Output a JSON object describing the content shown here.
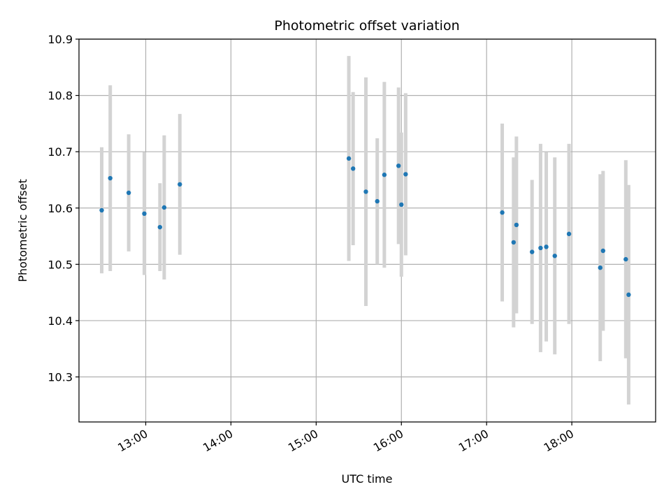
{
  "chart_data": {
    "type": "scatter",
    "title": "Photometric offset variation",
    "xlabel": "UTC time",
    "ylabel": "Photometric offset",
    "x_ticks": [
      "13:00",
      "14:00",
      "15:00",
      "16:00",
      "17:00",
      "18:00"
    ],
    "y_ticks": [
      "10.3",
      "10.4",
      "10.5",
      "10.6",
      "10.7",
      "10.8",
      "10.9"
    ],
    "xlim": [
      "12:13",
      "18:59"
    ],
    "ylim": [
      10.22,
      10.9
    ],
    "grid": true,
    "point_color": "#1f77b4",
    "errorbar_color": "#d3d3d3",
    "series": [
      {
        "points": [
          {
            "t": "12:29",
            "y": 10.596,
            "err": 0.112
          },
          {
            "t": "12:35",
            "y": 10.653,
            "err": 0.165
          },
          {
            "t": "12:48",
            "y": 10.627,
            "err": 0.104
          },
          {
            "t": "12:59",
            "y": 10.59,
            "err": 0.109
          },
          {
            "t": "13:10",
            "y": 10.566,
            "err": 0.078
          },
          {
            "t": "13:13",
            "y": 10.601,
            "err": 0.128
          },
          {
            "t": "13:24",
            "y": 10.642,
            "err": 0.125
          },
          {
            "t": "15:23",
            "y": 10.688,
            "err": 0.182
          },
          {
            "t": "15:26",
            "y": 10.67,
            "err": 0.136
          },
          {
            "t": "15:35",
            "y": 10.629,
            "err": 0.203
          },
          {
            "t": "15:43",
            "y": 10.612,
            "err": 0.112
          },
          {
            "t": "15:48",
            "y": 10.659,
            "err": 0.165
          },
          {
            "t": "15:58",
            "y": 10.675,
            "err": 0.139
          },
          {
            "t": "16:00",
            "y": 10.606,
            "err": 0.128
          },
          {
            "t": "16:03",
            "y": 10.66,
            "err": 0.144
          },
          {
            "t": "17:11",
            "y": 10.592,
            "err": 0.158
          },
          {
            "t": "17:19",
            "y": 10.539,
            "err": 0.151
          },
          {
            "t": "17:21",
            "y": 10.57,
            "err": 0.157
          },
          {
            "t": "17:32",
            "y": 10.522,
            "err": 0.128
          },
          {
            "t": "17:38",
            "y": 10.529,
            "err": 0.185
          },
          {
            "t": "17:42",
            "y": 10.531,
            "err": 0.168
          },
          {
            "t": "17:48",
            "y": 10.515,
            "err": 0.175
          },
          {
            "t": "17:58",
            "y": 10.554,
            "err": 0.16
          },
          {
            "t": "18:20",
            "y": 10.494,
            "err": 0.166
          },
          {
            "t": "18:22",
            "y": 10.524,
            "err": 0.142
          },
          {
            "t": "18:38",
            "y": 10.509,
            "err": 0.176
          },
          {
            "t": "18:40",
            "y": 10.446,
            "err": 0.195
          }
        ]
      }
    ]
  }
}
